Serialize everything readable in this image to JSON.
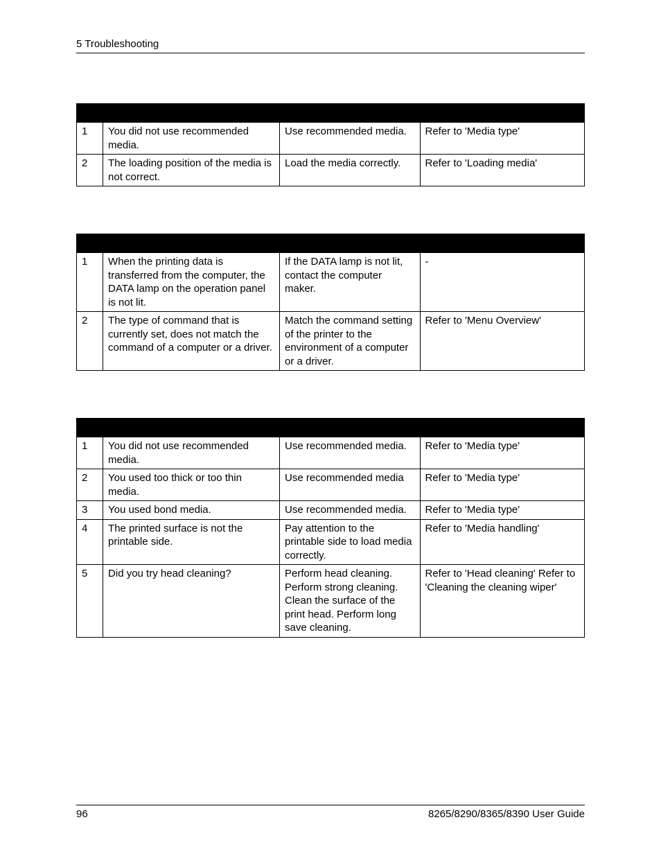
{
  "header": {
    "title": "5 Troubleshooting"
  },
  "footer": {
    "page_number": "96",
    "guide_name": "8265/8290/8365/8390 User Guide"
  },
  "tables": [
    {
      "rows": [
        {
          "num": "1",
          "cause": "You did not use recommended media.",
          "solution": "Use recommended media.",
          "reference": "Refer to 'Media type'"
        },
        {
          "num": "2",
          "cause": "The loading position of the media is not correct.",
          "solution": "Load the media correctly.",
          "reference": "Refer to 'Loading media'"
        }
      ]
    },
    {
      "rows": [
        {
          "num": "1",
          "cause": "When the printing data is transferred from the computer, the DATA lamp on the operation panel is not lit.",
          "solution": "If the DATA lamp is not lit, contact the computer maker.",
          "reference": "-"
        },
        {
          "num": "2",
          "cause": "The type of command that is currently set, does not match the command of a computer or a driver.",
          "solution": "Match the command setting of the printer to the environment of a computer or a driver.",
          "reference": "Refer to 'Menu Overview'"
        }
      ]
    },
    {
      "rows": [
        {
          "num": "1",
          "cause": "You did not use recommended media.",
          "solution": "Use recommended media.",
          "reference": "Refer to 'Media type'"
        },
        {
          "num": "2",
          "cause": "You used too thick or too thin media.",
          "solution": "Use recommended media",
          "reference": "Refer to 'Media type'"
        },
        {
          "num": "3",
          "cause": "You used bond media.",
          "solution": "Use recommended media.",
          "reference": "Refer to 'Media type'"
        },
        {
          "num": "4",
          "cause": "The printed surface is not the printable side.",
          "solution": "Pay attention to the printable side to load media correctly.",
          "reference": "Refer to 'Media handling'"
        },
        {
          "num": "5",
          "cause": "Did you try head cleaning?",
          "solution": "Perform head cleaning. Perform strong cleaning. Clean the surface of the print head.\nPerform long save cleaning.",
          "reference": "Refer to 'Head cleaning' Refer to 'Cleaning the cleaning wiper'"
        }
      ]
    }
  ]
}
